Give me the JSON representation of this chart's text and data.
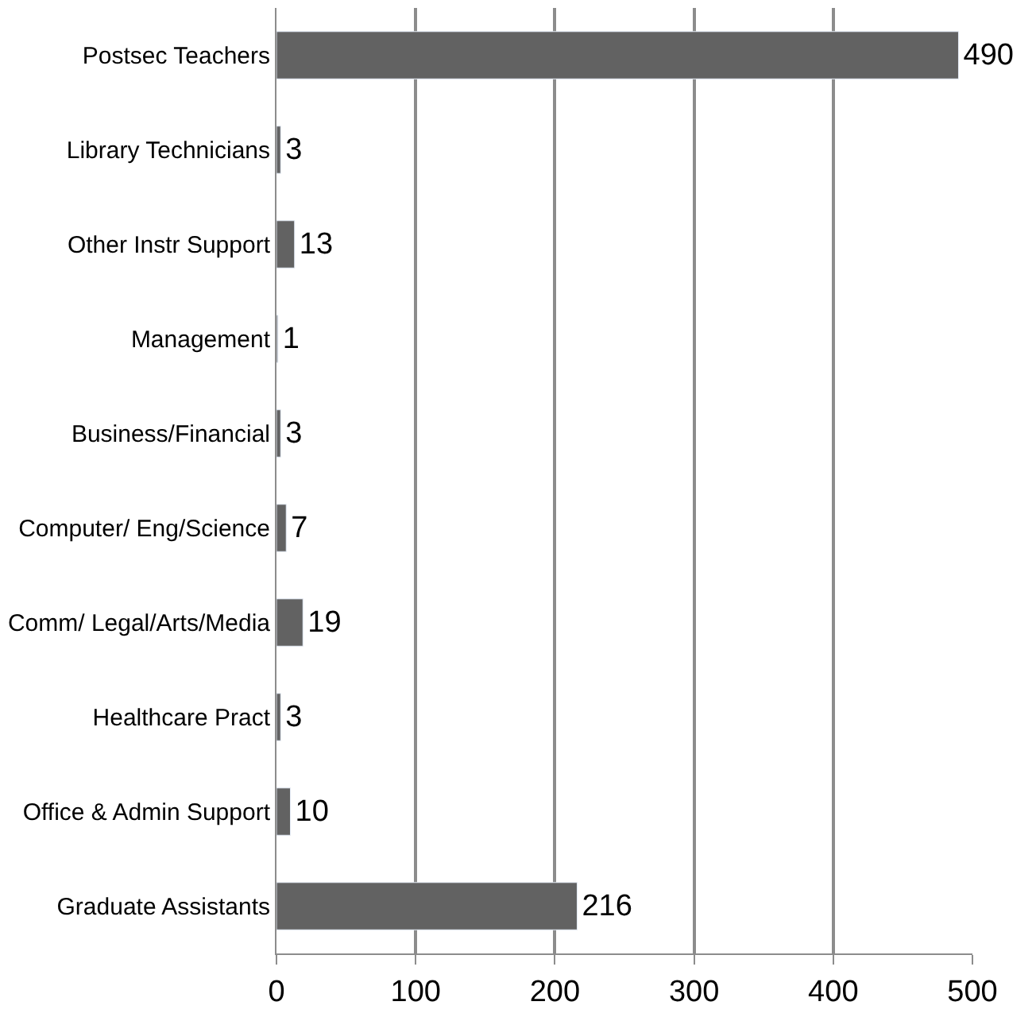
{
  "chart_data": {
    "type": "bar",
    "orientation": "horizontal",
    "categories": [
      "Postsec Teachers",
      "Library Technicians",
      "Other Instr Support",
      "Management",
      "Business/Financial",
      "Computer/ Eng/Science",
      "Comm/ Legal/Arts/Media",
      "Healthcare Pract",
      "Office & Admin Support",
      "Graduate Assistants"
    ],
    "values": [
      490,
      3,
      13,
      1,
      3,
      7,
      19,
      3,
      10,
      216
    ],
    "color": "#626262",
    "xlim": [
      0,
      500
    ],
    "xticks": [
      0,
      100,
      200,
      300,
      400,
      500
    ],
    "grid": "x",
    "data_labels": true,
    "legend": false
  }
}
